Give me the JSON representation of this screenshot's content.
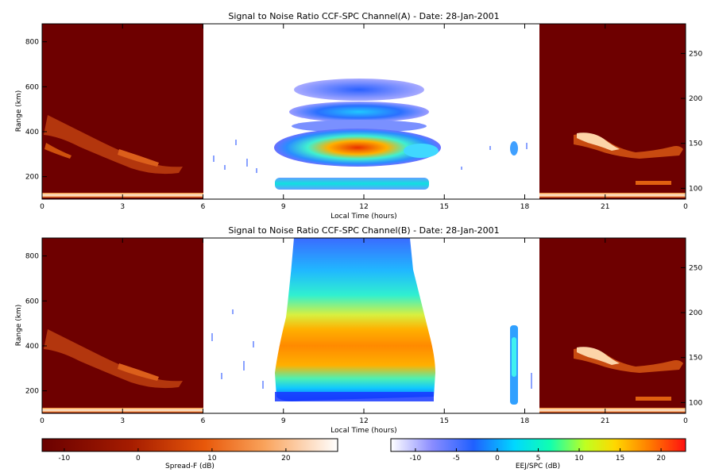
{
  "chart_data": [
    {
      "type": "heatmap",
      "title": "Signal to Noise Ratio CCF-SPC Channel(A) - Date: 28-Jan-2001",
      "xlabel": "Local Time (hours)",
      "ylabel": "Range (km)",
      "xlim": [
        0,
        24
      ],
      "ylim": [
        100,
        880
      ],
      "x_ticks": [
        "0",
        "3",
        "6",
        "9",
        "12",
        "15",
        "18",
        "21",
        "0"
      ],
      "y_ticks": [
        "200",
        "400",
        "600",
        "800"
      ],
      "y2_ticks": [
        "100",
        "150",
        "200",
        "250"
      ],
      "segments": {
        "spread_f_night_before": [
          0,
          6
        ],
        "eej_spc_day": [
          6,
          18.6
        ],
        "spread_f_night_after": [
          18.6,
          24
        ]
      },
      "features": [
        {
          "x_range": [
            8.7,
            14.7
          ],
          "range_km": [
            260,
            390
          ],
          "peak_db": 22
        },
        {
          "x_range": [
            9.2,
            13.6
          ],
          "range_km": [
            430,
            520
          ],
          "peak_db": 2
        },
        {
          "x_range": [
            9.5,
            13.3
          ],
          "range_km": [
            560,
            640
          ],
          "peak_db": -5
        },
        {
          "x_range": [
            8.8,
            14.4
          ],
          "range_km": [
            150,
            210
          ],
          "peak_db": 0
        },
        {
          "x_range": [
            17.2,
            17.6
          ],
          "range_km": [
            290,
            350
          ],
          "peak_db": 0
        }
      ]
    },
    {
      "type": "heatmap",
      "title": "Signal to Noise Ratio CCF-SPC Channel(B) - Date: 28-Jan-2001",
      "xlabel": "Local Time (hours)",
      "ylabel": "Range (km)",
      "xlim": [
        0,
        24
      ],
      "ylim": [
        100,
        880
      ],
      "x_ticks": [
        "0",
        "3",
        "6",
        "9",
        "12",
        "15",
        "18",
        "21",
        "0"
      ],
      "y_ticks": [
        "200",
        "400",
        "600",
        "800"
      ],
      "y2_ticks": [
        "100",
        "150",
        "200",
        "250"
      ],
      "segments": {
        "spread_f_night_before": [
          0,
          6
        ],
        "eej_spc_day": [
          6,
          18.6
        ],
        "spread_f_night_after": [
          18.6,
          24
        ]
      },
      "features": [
        {
          "x_range": [
            8.8,
            14.7
          ],
          "range_km": [
            150,
            880
          ],
          "peak_db": 15
        },
        {
          "x_range": [
            17.3,
            17.7
          ],
          "range_km": [
            150,
            440
          ],
          "peak_db": 0
        }
      ]
    }
  ],
  "colorbars": [
    {
      "label": "Spread-F (dB)",
      "ticks": [
        "-10",
        "0",
        "10",
        "20"
      ],
      "range": [
        -13,
        27
      ]
    },
    {
      "label": "EEJ/SPC (dB)",
      "ticks": [
        "-10",
        "-5",
        "0",
        "5",
        "10",
        "15",
        "20"
      ],
      "range": [
        -13,
        23
      ]
    }
  ]
}
